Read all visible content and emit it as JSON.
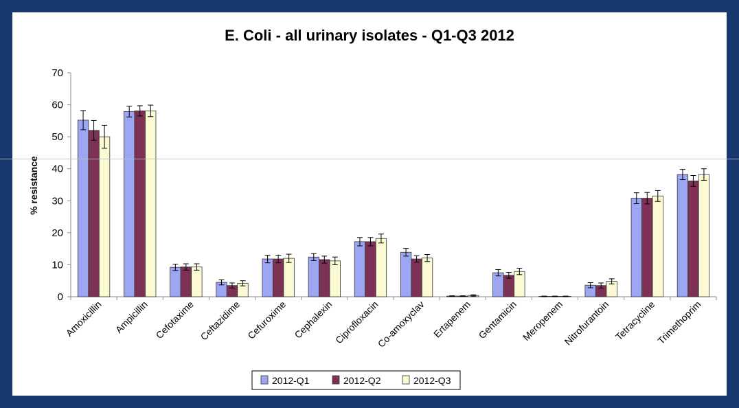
{
  "colors": {
    "background": "#17386e",
    "panel": "#ffffff",
    "series": [
      "#9da6f2",
      "#7d3154",
      "#fbfad3"
    ]
  },
  "chart_data": {
    "type": "bar",
    "title": "E. Coli - all urinary isolates - Q1-Q3 2012",
    "xlabel": "",
    "ylabel": "% resistance",
    "ylim": [
      0,
      70
    ],
    "yticks": [
      0,
      10,
      20,
      30,
      40,
      50,
      60,
      70
    ],
    "grid": false,
    "legend_position": "bottom",
    "error_bars": true,
    "categories": [
      "Amoxicillin",
      "Ampicillin",
      "Cefotaxime",
      "Ceftazidime",
      "Cefuroxime",
      "Cephalexin",
      "Ciprofloxacin",
      "Co-amoxyclav",
      "Ertapenem",
      "Gentamicin",
      "Meropenem",
      "Nitrofurantoin",
      "Tetracycline",
      "Trimethoprim"
    ],
    "series": [
      {
        "name": "2012-Q1",
        "values": [
          55.2,
          57.9,
          9.2,
          4.5,
          11.8,
          12.4,
          17.2,
          13.9,
          0.2,
          7.5,
          0.1,
          3.6,
          30.8,
          38.2
        ],
        "errors": [
          3.0,
          1.7,
          1.0,
          0.8,
          1.2,
          1.1,
          1.3,
          1.2,
          0.1,
          1.0,
          0.1,
          0.8,
          1.7,
          1.6
        ]
      },
      {
        "name": "2012-Q2",
        "values": [
          52.0,
          58.1,
          9.3,
          3.5,
          11.8,
          11.6,
          17.2,
          11.8,
          0.2,
          6.7,
          0.1,
          3.5,
          30.8,
          36.2
        ],
        "errors": [
          3.1,
          1.6,
          1.0,
          0.8,
          1.2,
          1.1,
          1.3,
          1.0,
          0.1,
          0.9,
          0.1,
          0.8,
          1.8,
          1.7
        ]
      },
      {
        "name": "2012-Q3",
        "values": [
          50.0,
          58.1,
          9.3,
          4.2,
          12.0,
          11.2,
          18.2,
          12.1,
          0.4,
          7.9,
          0.1,
          4.8,
          31.5,
          38.2
        ],
        "errors": [
          3.6,
          1.8,
          1.0,
          0.8,
          1.3,
          1.2,
          1.4,
          1.1,
          0.2,
          1.0,
          0.1,
          0.8,
          1.7,
          1.8
        ]
      }
    ]
  }
}
